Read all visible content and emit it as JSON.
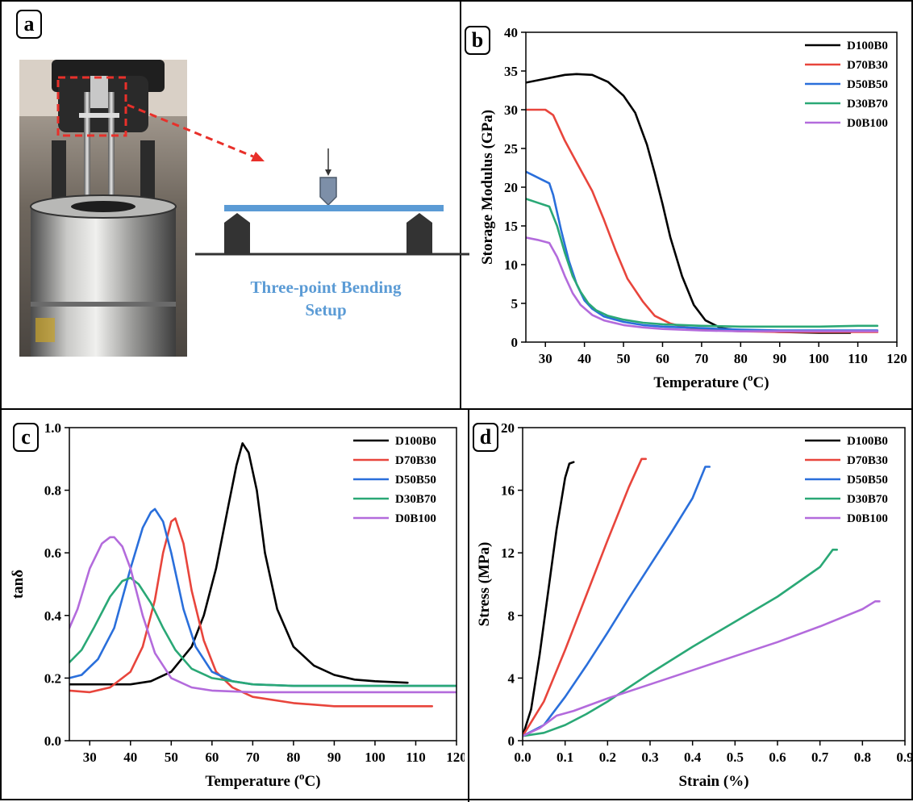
{
  "panels": {
    "a": "a",
    "b": "b",
    "c": "c",
    "d": "d"
  },
  "setup": {
    "caption_line1": "Three-point Bending",
    "caption_line2": "Setup",
    "beam_color": "#5b9bd5",
    "arrow_color": "#e8302a"
  },
  "series_colors": {
    "D100B0": "#000000",
    "D70B30": "#e8453c",
    "D50B50": "#2a6fdb",
    "D30B70": "#2aa876",
    "D0B100": "#b36bdc"
  },
  "chart_data": [
    {
      "id": "b",
      "type": "line",
      "xlabel": "Temperature (",
      "xlabel_sup": "o",
      "xlabel_tail": "C)",
      "ylabel": "Storage Modulus (GPa)",
      "xlim": [
        25,
        120
      ],
      "ylim": [
        0,
        40
      ],
      "xticks": [
        30,
        40,
        50,
        60,
        70,
        80,
        90,
        100,
        110,
        120
      ],
      "yticks": [
        0,
        5,
        10,
        15,
        20,
        25,
        30,
        35,
        40
      ],
      "legend": "top-right",
      "series": [
        {
          "name": "D100B0",
          "color": "#000000",
          "x": [
            25,
            30,
            35,
            38,
            42,
            46,
            50,
            53,
            56,
            58,
            60,
            62,
            65,
            68,
            71,
            75,
            80,
            90,
            100,
            108
          ],
          "y": [
            33.5,
            34.0,
            34.5,
            34.6,
            34.5,
            33.6,
            31.8,
            29.6,
            25.5,
            21.8,
            17.8,
            13.5,
            8.5,
            4.8,
            2.8,
            1.8,
            1.5,
            1.3,
            1.2,
            1.2
          ]
        },
        {
          "name": "D70B30",
          "color": "#e8453c",
          "x": [
            25,
            28,
            30,
            32,
            35,
            38,
            42,
            45,
            48,
            51,
            55,
            58,
            62,
            66,
            70,
            80,
            90,
            100,
            110,
            115
          ],
          "y": [
            30,
            30,
            30,
            29.3,
            26,
            23.2,
            19.5,
            15.8,
            11.8,
            8.2,
            5.2,
            3.4,
            2.4,
            1.9,
            1.6,
            1.4,
            1.3,
            1.3,
            1.3,
            1.3
          ]
        },
        {
          "name": "D50B50",
          "color": "#2a6fdb",
          "x": [
            25,
            27,
            29,
            31,
            32,
            34,
            36,
            38,
            40,
            42,
            45,
            50,
            55,
            60,
            70,
            80,
            90,
            100,
            110,
            115
          ],
          "y": [
            22,
            21.5,
            21.0,
            20.5,
            19.0,
            14.5,
            10.5,
            7.5,
            5.4,
            4.3,
            3.3,
            2.6,
            2.2,
            2.0,
            1.8,
            1.6,
            1.5,
            1.5,
            1.5,
            1.5
          ]
        },
        {
          "name": "D30B70",
          "color": "#2aa876",
          "x": [
            25,
            28,
            31,
            33,
            35,
            37,
            39,
            41,
            43,
            46,
            50,
            55,
            60,
            70,
            80,
            90,
            100,
            110,
            115
          ],
          "y": [
            18.5,
            18.0,
            17.5,
            15.0,
            11.5,
            8.5,
            6.5,
            5.0,
            4.1,
            3.4,
            2.9,
            2.5,
            2.3,
            2.1,
            2.0,
            2.0,
            2.0,
            2.1,
            2.1
          ]
        },
        {
          "name": "D0B100",
          "color": "#b36bdc",
          "x": [
            25,
            28,
            31,
            33,
            35,
            37,
            39,
            42,
            45,
            50,
            55,
            60,
            70,
            80,
            90,
            100,
            110,
            115
          ],
          "y": [
            13.5,
            13.2,
            12.8,
            11.0,
            8.5,
            6.3,
            4.8,
            3.5,
            2.8,
            2.2,
            1.9,
            1.7,
            1.5,
            1.4,
            1.4,
            1.4,
            1.4,
            1.4
          ]
        }
      ]
    },
    {
      "id": "c",
      "type": "line",
      "xlabel": "Temperature (",
      "xlabel_sup": "o",
      "xlabel_tail": "C)",
      "ylabel": "tanδ",
      "xlim": [
        25,
        120
      ],
      "ylim": [
        0,
        1.0
      ],
      "xticks": [
        30,
        40,
        50,
        60,
        70,
        80,
        90,
        100,
        110,
        120
      ],
      "yticks": [
        0.0,
        0.2,
        0.4,
        0.6,
        0.8,
        1.0
      ],
      "ytick_labels": [
        "0.0",
        "0.2",
        "0.4",
        "0.6",
        "0.8",
        "1.0"
      ],
      "legend": "top-right",
      "series": [
        {
          "name": "D100B0",
          "color": "#000000",
          "x": [
            25,
            30,
            35,
            40,
            45,
            50,
            55,
            58,
            61,
            64,
            66,
            67.5,
            69,
            71,
            73,
            76,
            80,
            85,
            90,
            95,
            100,
            108
          ],
          "y": [
            0.18,
            0.18,
            0.18,
            0.18,
            0.19,
            0.22,
            0.3,
            0.4,
            0.55,
            0.75,
            0.88,
            0.95,
            0.92,
            0.8,
            0.6,
            0.42,
            0.3,
            0.24,
            0.21,
            0.195,
            0.19,
            0.185
          ]
        },
        {
          "name": "D70B30",
          "color": "#e8453c",
          "x": [
            25,
            30,
            35,
            40,
            43,
            46,
            48,
            50,
            51,
            53,
            55,
            58,
            61,
            65,
            70,
            80,
            90,
            100,
            114
          ],
          "y": [
            0.16,
            0.155,
            0.17,
            0.22,
            0.3,
            0.45,
            0.6,
            0.7,
            0.71,
            0.63,
            0.48,
            0.32,
            0.22,
            0.17,
            0.14,
            0.12,
            0.11,
            0.11,
            0.11
          ]
        },
        {
          "name": "D50B50",
          "color": "#2a6fdb",
          "x": [
            25,
            28,
            32,
            36,
            40,
            43,
            45,
            46,
            48,
            50,
            53,
            56,
            60,
            65,
            70,
            80,
            90,
            100,
            120
          ],
          "y": [
            0.2,
            0.21,
            0.26,
            0.36,
            0.55,
            0.68,
            0.73,
            0.74,
            0.7,
            0.6,
            0.42,
            0.3,
            0.22,
            0.19,
            0.18,
            0.175,
            0.175,
            0.175,
            0.175
          ]
        },
        {
          "name": "D30B70",
          "color": "#2aa876",
          "x": [
            25,
            28,
            31,
            35,
            38,
            40,
            42,
            45,
            48,
            51,
            55,
            60,
            65,
            70,
            80,
            90,
            100,
            120
          ],
          "y": [
            0.25,
            0.29,
            0.36,
            0.46,
            0.51,
            0.52,
            0.5,
            0.44,
            0.36,
            0.29,
            0.23,
            0.2,
            0.19,
            0.18,
            0.175,
            0.175,
            0.175,
            0.175
          ]
        },
        {
          "name": "D0B100",
          "color": "#b36bdc",
          "x": [
            25,
            27,
            30,
            33,
            35,
            36,
            38,
            40,
            43,
            46,
            50,
            55,
            60,
            70,
            80,
            90,
            100,
            120
          ],
          "y": [
            0.36,
            0.42,
            0.55,
            0.63,
            0.65,
            0.65,
            0.62,
            0.55,
            0.4,
            0.28,
            0.2,
            0.17,
            0.16,
            0.155,
            0.155,
            0.155,
            0.155,
            0.155
          ]
        }
      ]
    },
    {
      "id": "d",
      "type": "line",
      "xlabel": "Strain (%)",
      "ylabel": "Stress (MPa)",
      "xlim": [
        0,
        0.9
      ],
      "ylim": [
        0,
        20
      ],
      "xticks": [
        0.0,
        0.1,
        0.2,
        0.3,
        0.4,
        0.5,
        0.6,
        0.7,
        0.8,
        0.9
      ],
      "xtick_labels": [
        "0.0",
        "0.1",
        "0.2",
        "0.3",
        "0.4",
        "0.5",
        "0.6",
        "0.7",
        "0.8",
        "0.9"
      ],
      "yticks": [
        0,
        4,
        8,
        12,
        16,
        20
      ],
      "legend": "top-right",
      "series": [
        {
          "name": "D100B0",
          "color": "#000000",
          "x": [
            0.0,
            0.02,
            0.04,
            0.06,
            0.08,
            0.1,
            0.11,
            0.12
          ],
          "y": [
            0.3,
            2.0,
            5.5,
            9.5,
            13.5,
            16.8,
            17.7,
            17.8
          ]
        },
        {
          "name": "D70B30",
          "color": "#e8453c",
          "x": [
            0.0,
            0.05,
            0.1,
            0.15,
            0.2,
            0.25,
            0.28,
            0.29
          ],
          "y": [
            0.3,
            2.5,
            5.8,
            9.3,
            12.8,
            16.2,
            18.0,
            18.0
          ]
        },
        {
          "name": "D50B50",
          "color": "#2a6fdb",
          "x": [
            0.0,
            0.05,
            0.1,
            0.15,
            0.2,
            0.25,
            0.3,
            0.35,
            0.4,
            0.43,
            0.44
          ],
          "y": [
            0.3,
            1.0,
            2.8,
            4.8,
            6.9,
            9.1,
            11.2,
            13.3,
            15.5,
            17.5,
            17.5
          ]
        },
        {
          "name": "D30B70",
          "color": "#2aa876",
          "x": [
            0.0,
            0.05,
            0.1,
            0.15,
            0.2,
            0.3,
            0.4,
            0.5,
            0.6,
            0.7,
            0.73,
            0.74
          ],
          "y": [
            0.3,
            0.5,
            1.0,
            1.7,
            2.5,
            4.3,
            6.0,
            7.6,
            9.2,
            11.1,
            12.2,
            12.2
          ]
        },
        {
          "name": "D0B100",
          "color": "#b36bdc",
          "x": [
            0.0,
            0.04,
            0.08,
            0.12,
            0.2,
            0.3,
            0.4,
            0.5,
            0.6,
            0.7,
            0.8,
            0.83,
            0.84
          ],
          "y": [
            0.3,
            0.8,
            1.6,
            1.9,
            2.7,
            3.6,
            4.5,
            5.4,
            6.3,
            7.3,
            8.4,
            8.9,
            8.9
          ]
        }
      ]
    }
  ]
}
